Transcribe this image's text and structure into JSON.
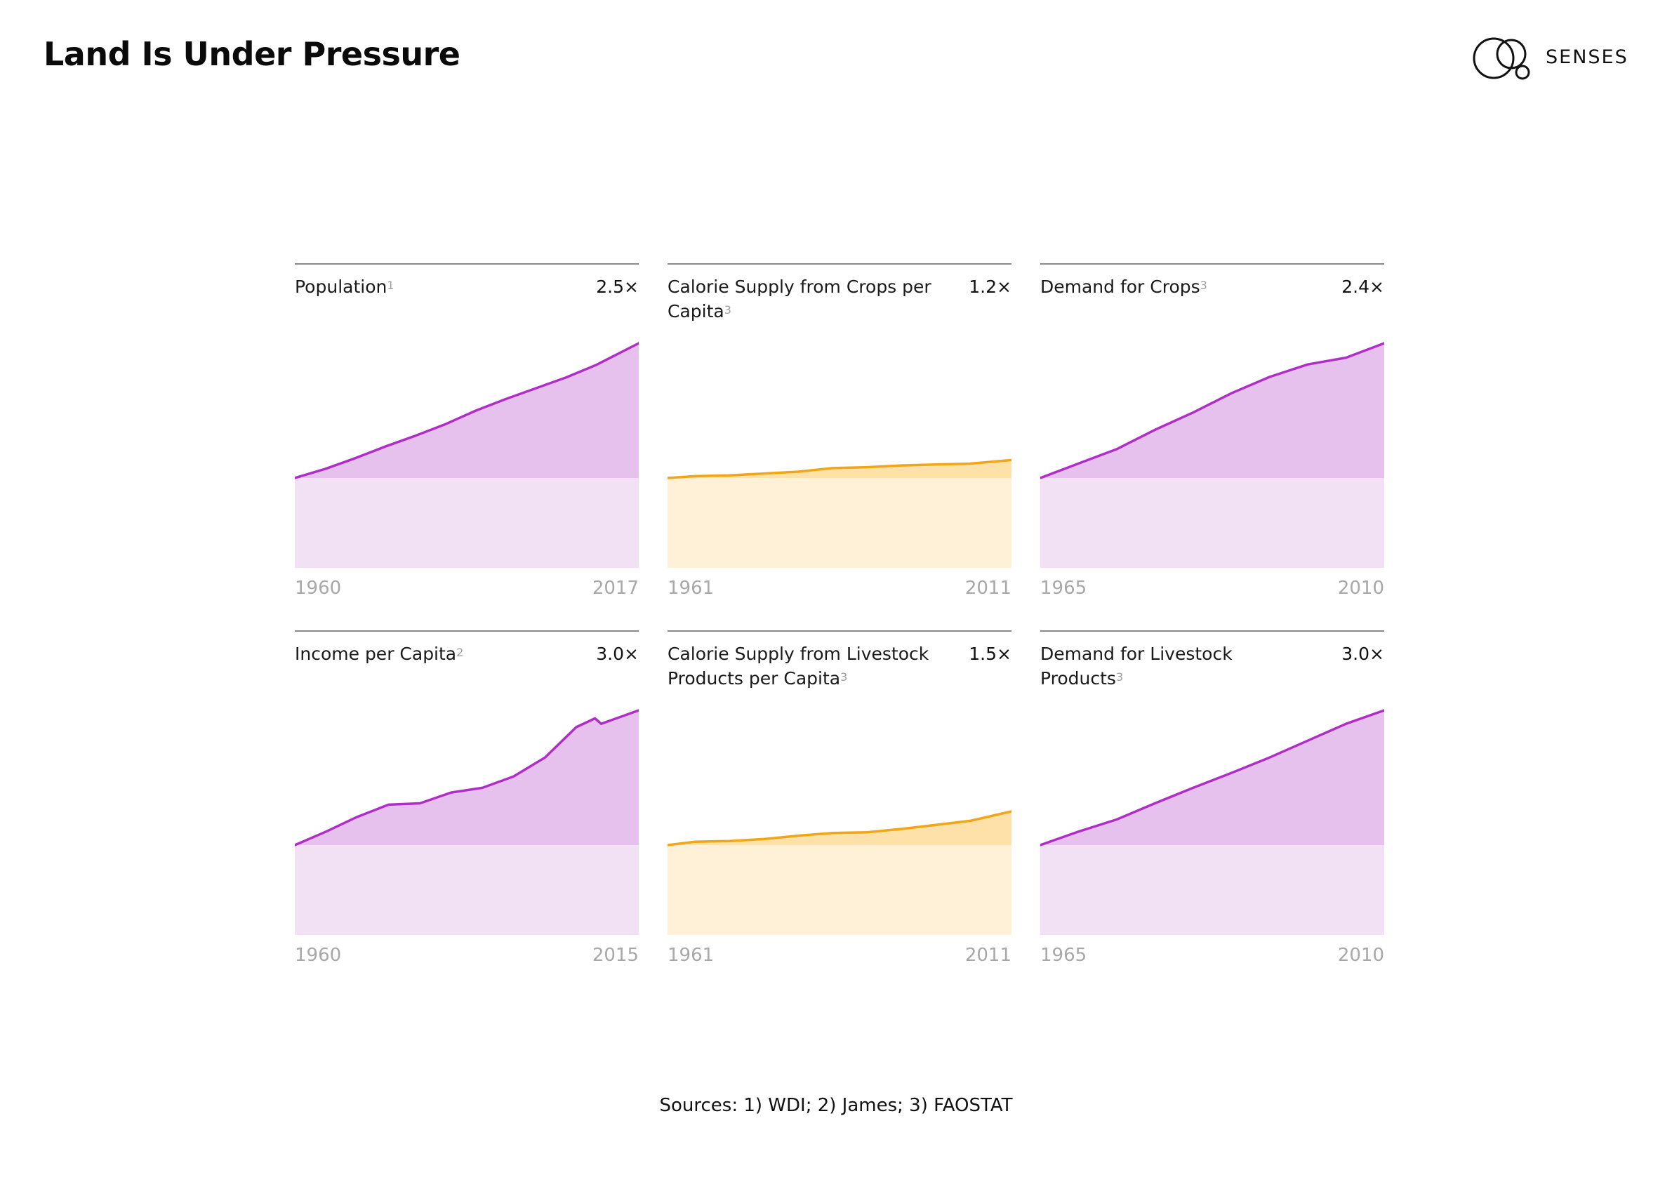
{
  "page_title": "Land Is Under Pressure",
  "brand": {
    "name": "SENSES",
    "logo_icon": "overlapping-circles-logo-icon"
  },
  "colors": {
    "purple_line": "#b02ec8",
    "purple_fill": "#e6c1ee",
    "purple_base": "#f2e0f5",
    "orange_line": "#f2a516",
    "orange_fill": "#fde1a8",
    "orange_base": "#fef1d8"
  },
  "sources_text": "Sources: 1) WDI;  2) James;  3) FAOSTAT",
  "chart_data": [
    {
      "type": "area",
      "title": "Population",
      "source_ref": "1",
      "factor": "2.5×",
      "theme": "purple",
      "x_start_label": "1960",
      "x_end_label": "2017",
      "x": [
        1960,
        1965,
        1970,
        1975,
        1980,
        1985,
        1990,
        1995,
        2000,
        2005,
        2010,
        2017
      ],
      "values": [
        1.0,
        1.1,
        1.22,
        1.35,
        1.47,
        1.6,
        1.75,
        1.88,
        2.0,
        2.12,
        2.26,
        2.5
      ],
      "ylim": [
        0,
        2.5
      ]
    },
    {
      "type": "area",
      "title": "Calorie Supply from Crops per Capita",
      "source_ref": "3",
      "factor": "1.2×",
      "theme": "orange",
      "x_start_label": "1961",
      "x_end_label": "2011",
      "x": [
        1961,
        1965,
        1970,
        1975,
        1980,
        1985,
        1990,
        1995,
        2000,
        2005,
        2011
      ],
      "values": [
        1.0,
        1.02,
        1.03,
        1.05,
        1.07,
        1.11,
        1.12,
        1.14,
        1.15,
        1.16,
        1.2
      ],
      "ylim": [
        0,
        2.5
      ]
    },
    {
      "type": "area",
      "title": "Demand for Crops",
      "source_ref": "3",
      "factor": "2.4×",
      "theme": "purple",
      "x_start_label": "1965",
      "x_end_label": "2010",
      "x": [
        1965,
        1970,
        1975,
        1980,
        1985,
        1990,
        1995,
        2000,
        2005,
        2010
      ],
      "values": [
        1.0,
        1.15,
        1.3,
        1.5,
        1.68,
        1.88,
        2.05,
        2.18,
        2.25,
        2.4
      ],
      "ylim": [
        0,
        2.4
      ]
    },
    {
      "type": "area",
      "title": "Income per Capita",
      "source_ref": "2",
      "factor": "3.0×",
      "theme": "purple",
      "x_start_label": "1960",
      "x_end_label": "2015",
      "x": [
        1960,
        1965,
        1970,
        1975,
        1980,
        1985,
        1990,
        1995,
        2000,
        2005,
        2008,
        2009,
        2015
      ],
      "values": [
        1.0,
        1.2,
        1.42,
        1.6,
        1.62,
        1.78,
        1.85,
        2.02,
        2.3,
        2.75,
        2.88,
        2.8,
        3.0
      ],
      "ylim": [
        0,
        3.0
      ]
    },
    {
      "type": "area",
      "title": "Calorie Supply from Livestock Products per Capita",
      "source_ref": "3",
      "factor": "1.5×",
      "theme": "orange",
      "x_start_label": "1961",
      "x_end_label": "2011",
      "x": [
        1961,
        1965,
        1970,
        1975,
        1980,
        1985,
        1990,
        1995,
        2000,
        2005,
        2011
      ],
      "values": [
        1.0,
        1.05,
        1.06,
        1.09,
        1.14,
        1.18,
        1.19,
        1.24,
        1.3,
        1.36,
        1.5
      ],
      "ylim": [
        0,
        3.0
      ]
    },
    {
      "type": "area",
      "title": "Demand for Livestock Products",
      "source_ref": "3",
      "factor": "3.0×",
      "theme": "purple",
      "x_start_label": "1965",
      "x_end_label": "2010",
      "x": [
        1965,
        1970,
        1975,
        1980,
        1985,
        1990,
        1995,
        2000,
        2005,
        2010
      ],
      "values": [
        1.0,
        1.2,
        1.38,
        1.62,
        1.85,
        2.07,
        2.3,
        2.55,
        2.8,
        3.0
      ],
      "ylim": [
        0,
        3.0
      ]
    }
  ]
}
